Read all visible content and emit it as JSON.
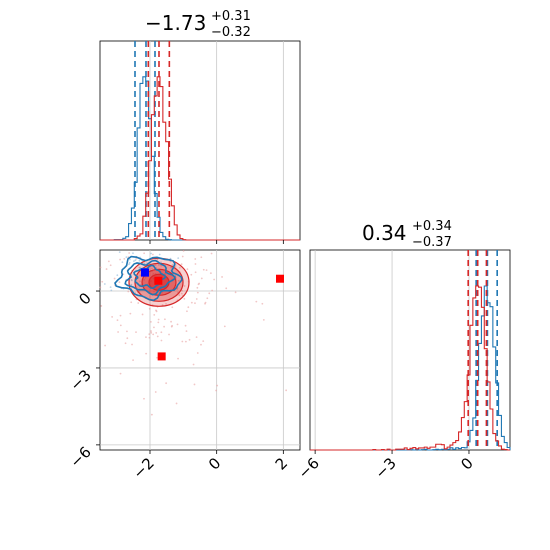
{
  "chart_data": {
    "type": "corner",
    "parameters": [
      "param_1",
      "param_2"
    ],
    "titles": {
      "param_1": {
        "median": "−1.73",
        "plus": "+0.31",
        "minus": "−0.32"
      },
      "param_2": {
        "median": "0.34",
        "plus": "+0.34",
        "minus": "−0.37"
      }
    },
    "axis_ranges": {
      "param_1": [
        -3.5,
        2.5
      ],
      "param_2": [
        -6.2,
        1.6
      ]
    },
    "ticks": {
      "param_1": [
        -2,
        0,
        2
      ],
      "param_2": [
        -6,
        -3,
        0
      ]
    },
    "tick_labels": {
      "param_1": [
        "−2",
        "0",
        "2"
      ],
      "param_2": [
        "−6",
        "−3",
        "0"
      ]
    },
    "grid": true,
    "series": [
      {
        "color": "#1f77b4",
        "param_1": {
          "quantiles": [
            -2.45,
            -2.12,
            -1.85
          ],
          "center": -2.15,
          "width": 0.2
        },
        "param_2": {
          "quantiles": [
            0.28,
            0.72,
            1.1
          ],
          "center": 0.7,
          "width": 0.28
        },
        "marker": [
          -2.15,
          0.72
        ]
      },
      {
        "color": "#d62728",
        "param_1": {
          "quantiles": [
            -2.05,
            -1.73,
            -1.42
          ],
          "center": -1.73,
          "width": 0.22
        },
        "param_2": {
          "quantiles": [
            -0.03,
            0.34,
            0.68
          ],
          "center": 0.34,
          "width": 0.3
        },
        "marker": [
          -1.75,
          0.4
        ]
      }
    ],
    "extra_markers": [
      {
        "x": 1.9,
        "y": 0.48,
        "color": "#ff0000"
      },
      {
        "x": -1.65,
        "y": -2.55,
        "color": "#ff0000"
      },
      {
        "x": -2.15,
        "y": 0.72,
        "color": "#0000ff"
      }
    ]
  }
}
